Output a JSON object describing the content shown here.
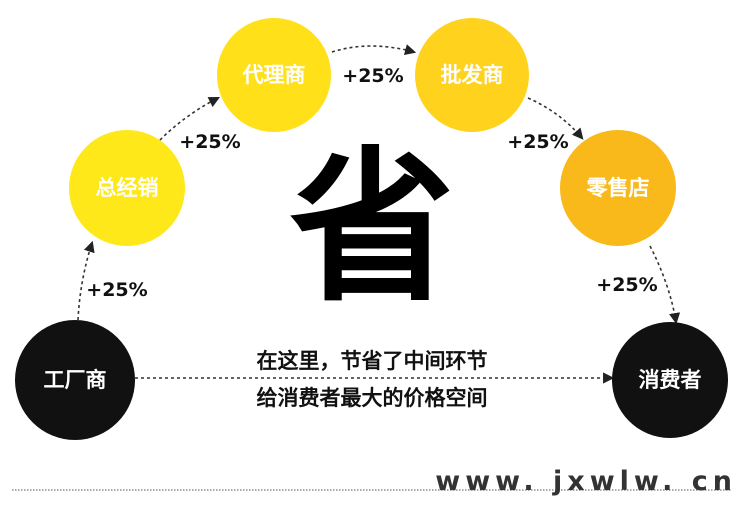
{
  "nodes": {
    "factory": {
      "label": "工厂商",
      "color": "#111111"
    },
    "distributor": {
      "label": "总经销",
      "color": "#FFE81A"
    },
    "agent": {
      "label": "代理商",
      "color": "#FFE019"
    },
    "wholesaler": {
      "label": "批发商",
      "color": "#FFD21E"
    },
    "retailer": {
      "label": "零售店",
      "color": "#F9B91A"
    },
    "consumer": {
      "label": "消费者",
      "color": "#111111"
    }
  },
  "markups": [
    "+25%",
    "+25%",
    "+25%",
    "+25%",
    "+25%"
  ],
  "center_char": "省",
  "caption": {
    "line1": "在这里，节省了中间环节",
    "line2": "给消费者最大的价格空间"
  },
  "website": "www. jxwlw. cn"
}
